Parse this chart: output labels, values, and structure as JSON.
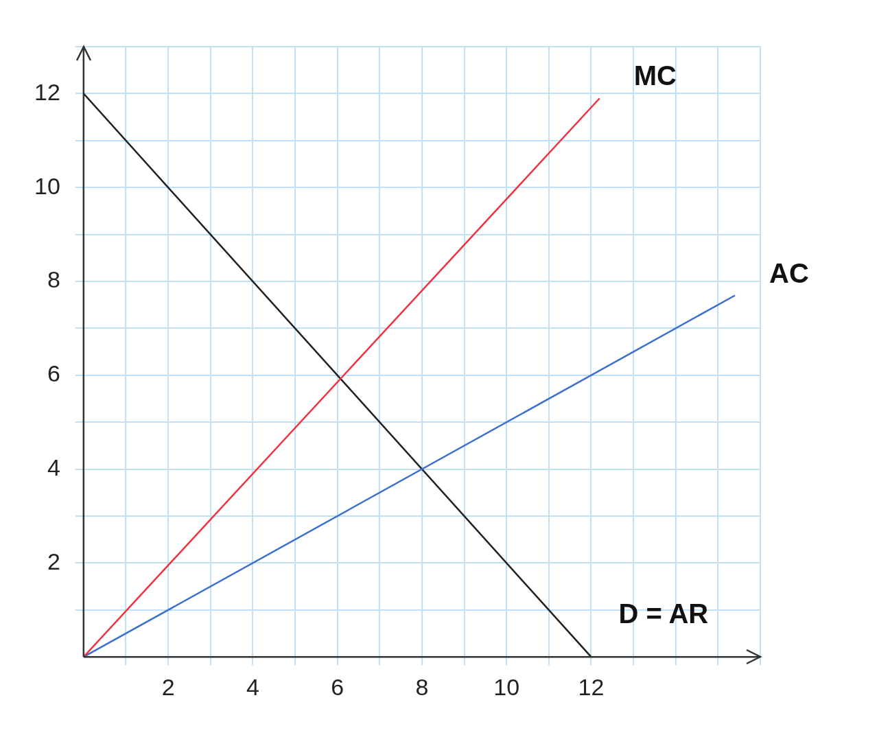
{
  "chart_data": {
    "type": "line",
    "xlim": [
      0,
      16
    ],
    "ylim": [
      0,
      13
    ],
    "xticks": [
      {
        "value": 1,
        "label": null
      },
      2,
      {
        "value": 3,
        "label": null
      },
      4,
      {
        "value": 5,
        "label": null
      },
      6,
      {
        "value": 7,
        "label": null
      },
      8,
      {
        "value": 9,
        "label": null
      },
      10,
      {
        "value": 11,
        "label": null
      },
      12,
      {
        "value": 13,
        "label": null
      },
      {
        "value": 14,
        "label": null
      },
      {
        "value": 15,
        "label": null
      },
      {
        "value": 16,
        "label": null
      }
    ],
    "yticks": [
      {
        "value": 1,
        "label": null
      },
      2,
      {
        "value": 3,
        "label": null
      },
      4,
      {
        "value": 5,
        "label": null
      },
      6,
      {
        "value": 7,
        "label": null
      },
      8,
      {
        "value": 9,
        "label": null
      },
      10,
      {
        "value": 11,
        "label": null
      },
      12,
      {
        "value": 13,
        "label": null
      }
    ],
    "grid": true,
    "legend": false,
    "marker": "none",
    "line_style": "solid",
    "series": [
      {
        "name": "MC",
        "color": "#f0323c",
        "x": [
          0,
          12.2
        ],
        "values": [
          0,
          11.9
        ]
      },
      {
        "name": "AC",
        "color": "#3c6fd0",
        "x": [
          0,
          15.4
        ],
        "values": [
          0,
          7.7
        ]
      },
      {
        "name": "D = AR",
        "color": "#202020",
        "x": [
          0,
          12
        ],
        "values": [
          12,
          0
        ]
      }
    ]
  }
}
